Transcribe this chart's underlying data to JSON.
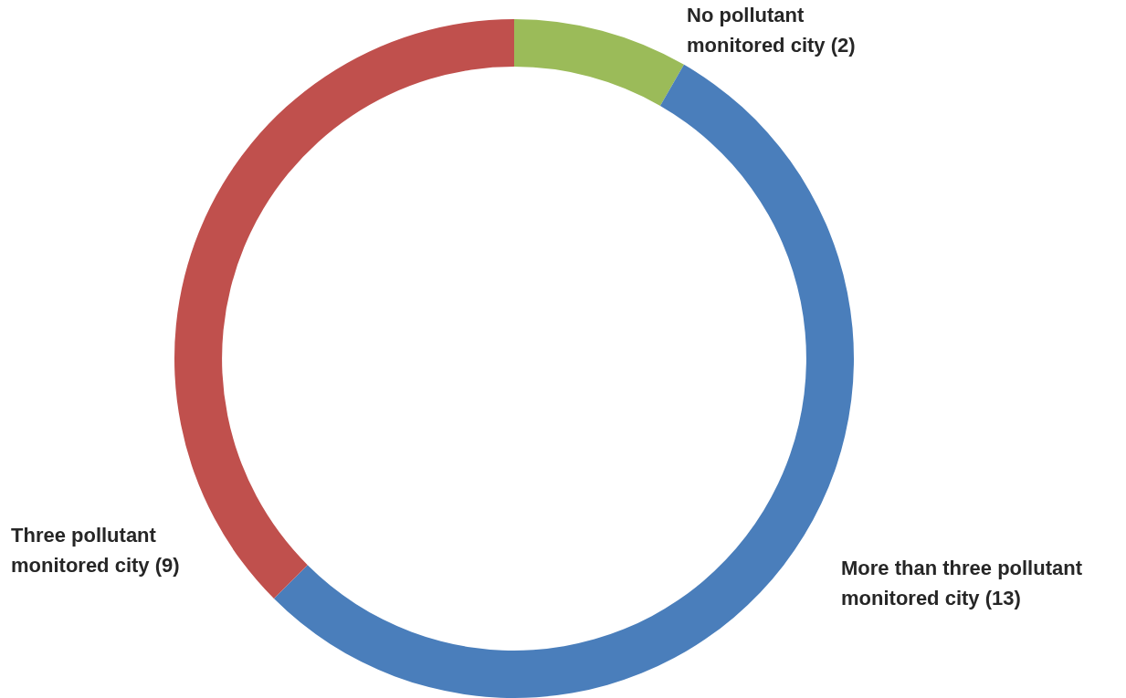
{
  "chart_data": {
    "type": "donut",
    "categories": [
      "No pollutant monitored city (2)",
      "More than three pollutant monitored city (13)",
      "Three pollutant monitored city (9)"
    ],
    "values": [
      2,
      13,
      9
    ],
    "colors": [
      "#9bbb59",
      "#4a7ebb",
      "#c0504d"
    ],
    "legend": false
  }
}
